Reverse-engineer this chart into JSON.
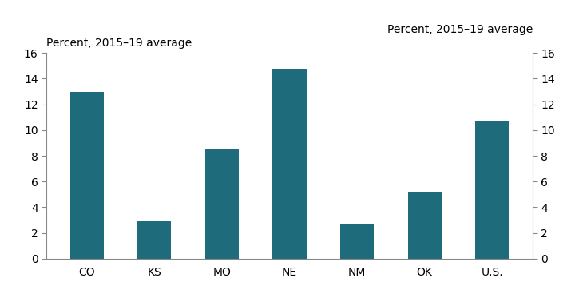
{
  "categories": [
    "CO",
    "KS",
    "MO",
    "NE",
    "NM",
    "OK",
    "U.S."
  ],
  "values": [
    13.0,
    2.95,
    8.5,
    14.75,
    2.75,
    5.2,
    10.7
  ],
  "bar_color": "#1e6b7c",
  "ylabel_left": "Percent, 2015–19 average",
  "ylabel_right": "Percent, 2015–19 average",
  "ylim": [
    0,
    16
  ],
  "yticks": [
    0,
    2,
    4,
    6,
    8,
    10,
    12,
    14,
    16
  ],
  "background_color": "#ffffff",
  "bar_width": 0.5,
  "spine_color": "#888888",
  "tick_label_fontsize": 10,
  "ylabel_fontsize": 10
}
